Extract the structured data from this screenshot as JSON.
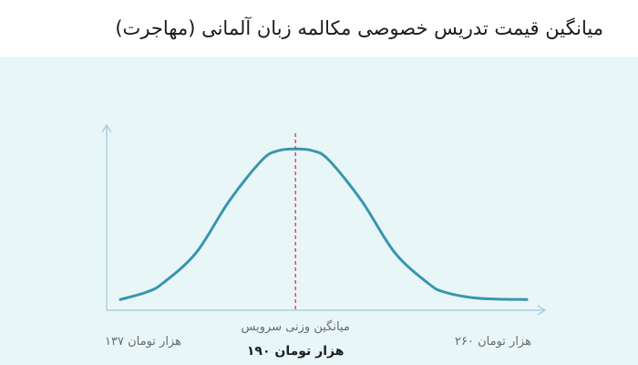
{
  "colors": {
    "background": "#e9f6f8",
    "curve": "#3a95ae",
    "axis": "#a9cfdb",
    "mean_line": "#e0354a",
    "label": "#6b6b6b",
    "label_strong": "#1f1f1f"
  },
  "chart_data": {
    "type": "line",
    "title": "میانگین قیمت تدریس خصوصی مکالمه زبان آلمانی (مهاجرت)",
    "series": [
      {
        "x": [
          137,
          145,
          150,
          160,
          170,
          180,
          185,
          190,
          195,
          200,
          210,
          220,
          230,
          235,
          245,
          260
        ],
        "y": [
          0.01,
          0.06,
          0.12,
          0.32,
          0.66,
          0.93,
          0.99,
          1.0,
          0.99,
          0.93,
          0.66,
          0.32,
          0.12,
          0.06,
          0.02,
          0.01
        ]
      }
    ],
    "xlim": [
      137,
      260
    ],
    "ylim": [
      0,
      1.2
    ],
    "grid": false,
    "legend": "none",
    "labels": {
      "min": "۱۳۷ هزار تومان",
      "max": "۲۶۰ هزار تومان",
      "mean_caption": "میانگین وزنی سرویس",
      "mean_value": "۱۹۰ هزار تومان"
    },
    "mean_x": 190
  }
}
